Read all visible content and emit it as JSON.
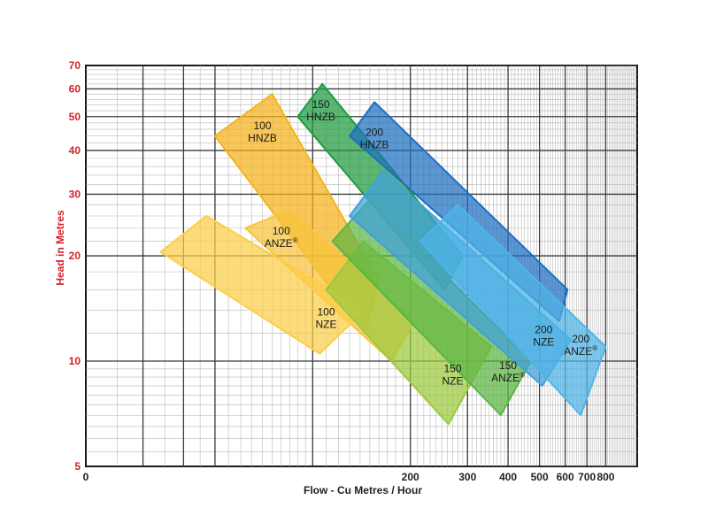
{
  "chart_data": {
    "type": "area",
    "title": "",
    "xlabel": "Flow - Cu Metres / Hour",
    "ylabel": "Head in Metres",
    "x_scale": "log",
    "y_scale": "log",
    "xlim": [
      0,
      1000
    ],
    "ylim": [
      5,
      70
    ],
    "x_ticks": [
      "0",
      "200",
      "300",
      "400",
      "500",
      "600",
      "700",
      "800"
    ],
    "y_ticks": [
      "5",
      "10",
      "20",
      "30",
      "40",
      "50",
      "60",
      "70"
    ],
    "grid": true,
    "y_label_color": "#d5202b",
    "series": [
      {
        "name": "100 HNZB",
        "label_lines": [
          "100",
          "HNZB"
        ],
        "color": "#f5b21c",
        "points": [
          [
            50,
            44
          ],
          [
            75,
            58
          ],
          [
            160,
            17
          ],
          [
            145,
            12
          ]
        ],
        "label_at": [
          70,
          46
        ]
      },
      {
        "name": "150 HNZB",
        "label_lines": [
          "150",
          "HNZB"
        ],
        "color": "#1f9a3f",
        "points": [
          [
            90,
            50
          ],
          [
            107,
            62
          ],
          [
            290,
            20
          ],
          [
            255,
            16
          ]
        ],
        "label_at": [
          106,
          53
        ]
      },
      {
        "name": "200 HNZB",
        "label_lines": [
          "200",
          "HNZB"
        ],
        "color": "#1f6fbf",
        "points": [
          [
            130,
            44
          ],
          [
            155,
            55
          ],
          [
            610,
            16
          ],
          [
            575,
            13
          ]
        ],
        "label_at": [
          155,
          44
        ]
      },
      {
        "name": "100 ANZE",
        "label_lines": [
          "100",
          "ANZE"
        ],
        "registered": true,
        "color": "#f8c43c",
        "points": [
          [
            62,
            24
          ],
          [
            85,
            27
          ],
          [
            205,
            13
          ],
          [
            175,
            10
          ]
        ],
        "label_at": [
          80,
          23
        ]
      },
      {
        "name": "100 NZE",
        "label_lines": [
          "100",
          "NZE"
        ],
        "color": "#fbcd48",
        "points": [
          [
            34,
            20.5
          ],
          [
            47,
            26
          ],
          [
            145,
            14
          ],
          [
            105,
            10.5
          ]
        ],
        "label_at": [
          110,
          13.5
        ]
      },
      {
        "name": "150 NZE",
        "label_lines": [
          "150",
          "NZE"
        ],
        "color": "#9cc93f",
        "points": [
          [
            110,
            16
          ],
          [
            143,
            22
          ],
          [
            355,
            11
          ],
          [
            262,
            6.6
          ]
        ],
        "label_at": [
          270,
          9.3
        ]
      },
      {
        "name": "150 ANZE",
        "label_lines": [
          "150",
          "ANZE"
        ],
        "registered": true,
        "color": "#5bb543",
        "points": [
          [
            115,
            22
          ],
          [
            150,
            29
          ],
          [
            470,
            10
          ],
          [
            380,
            7
          ]
        ],
        "label_at": [
          400,
          9.5
        ]
      },
      {
        "name": "200 NZE",
        "label_lines": [
          "200",
          "NZE"
        ],
        "color": "#3fa1dd",
        "points": [
          [
            130,
            26
          ],
          [
            165,
            35
          ],
          [
            625,
            11.5
          ],
          [
            510,
            8.5
          ]
        ],
        "label_at": [
          515,
          12
        ]
      },
      {
        "name": "200 ANZE",
        "label_lines": [
          "200",
          "ANZE"
        ],
        "registered": true,
        "color": "#4fb4e8",
        "points": [
          [
            215,
            22
          ],
          [
            280,
            28
          ],
          [
            800,
            11
          ],
          [
            670,
            7
          ]
        ],
        "label_at": [
          670,
          11.3
        ]
      }
    ]
  }
}
